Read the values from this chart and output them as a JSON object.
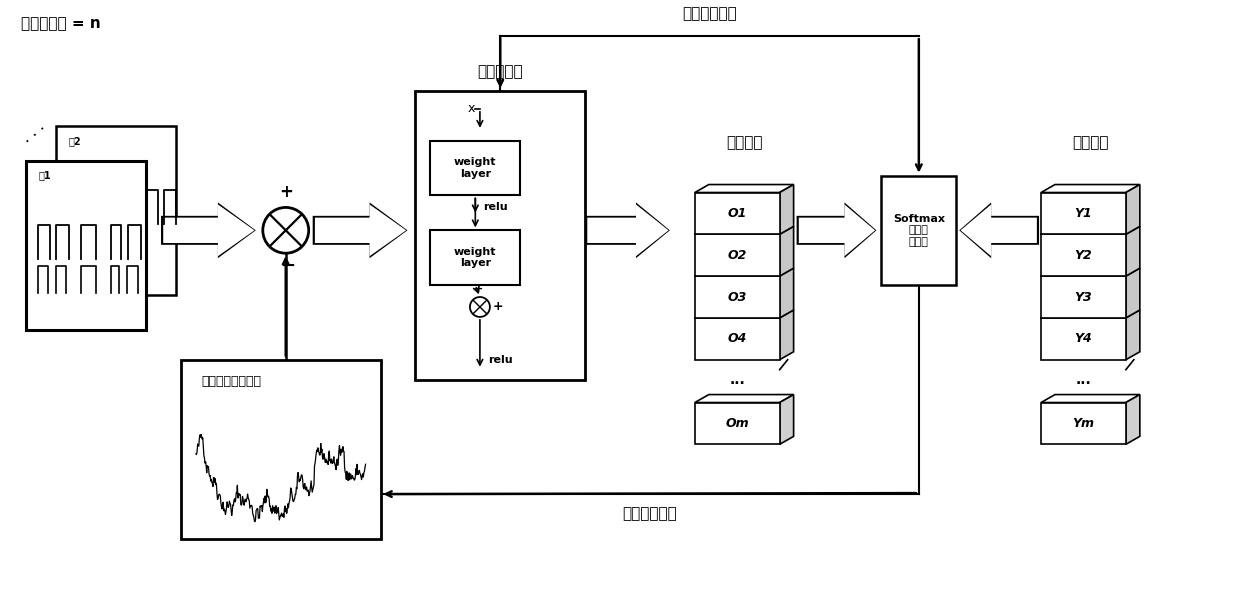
{
  "bg_color": "#ffffff",
  "text_color": "#000000",
  "title_top_left": "数据包大小 = n",
  "label_feature": "特征提取器",
  "label_network_out": "网络输出",
  "label_ref": "参考标签",
  "label_eliminator": "非指纹信号消除器",
  "label_backprop_top": "梯度反向传播",
  "label_backprop_bot": "梯度反向传播",
  "label_softmax": "Softmax\n与交叉\n熵损失",
  "outputs": [
    "O1",
    "O2",
    "O3",
    "O4"
  ],
  "output_last": "Om",
  "refs": [
    "Y1",
    "Y2",
    "Y3",
    "Y4"
  ],
  "ref_last": "Ym",
  "fig2_label": "图2",
  "fig1_label": "图1"
}
